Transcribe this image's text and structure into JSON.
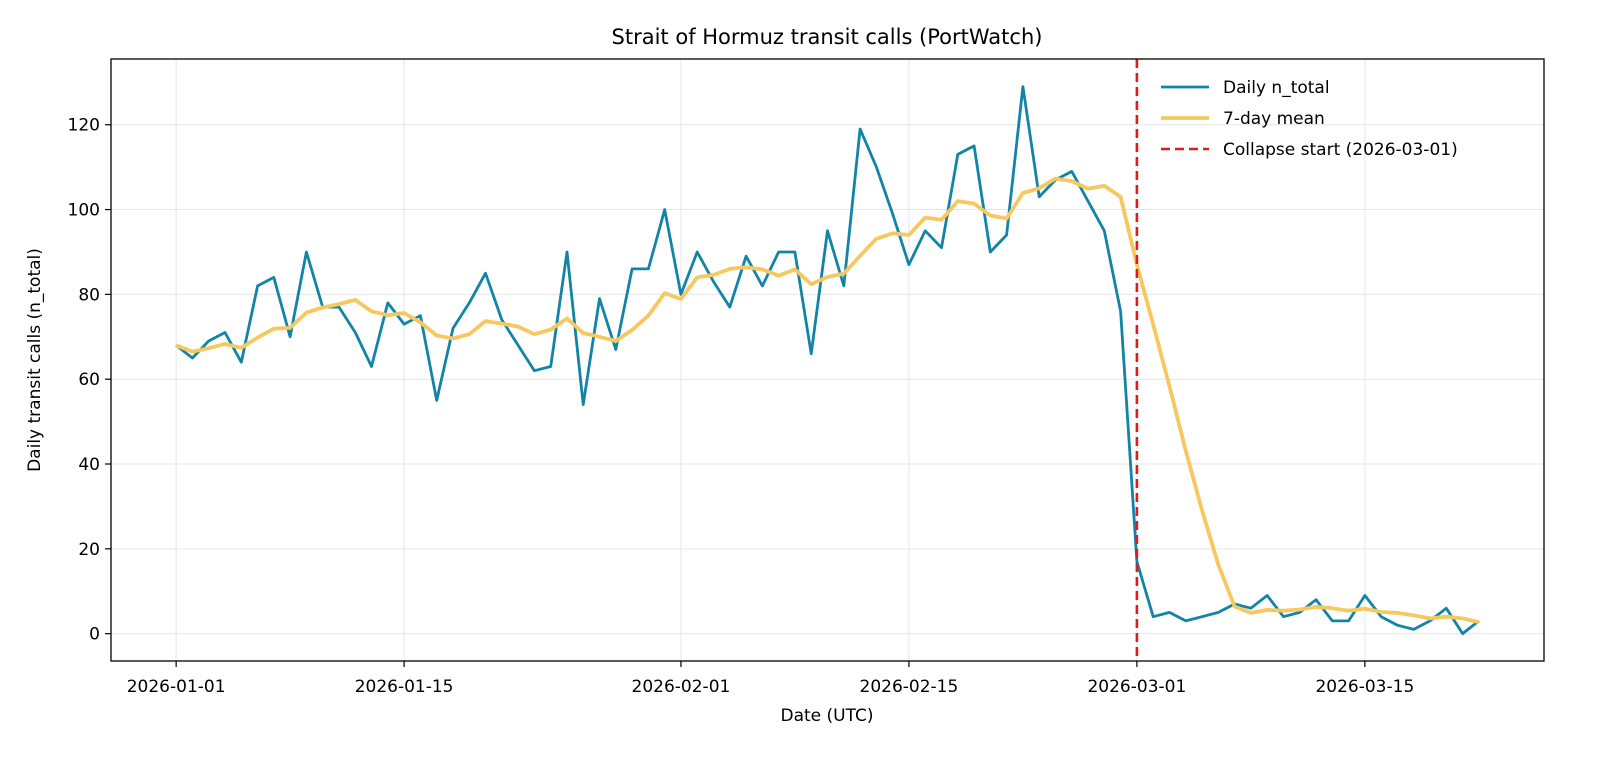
{
  "chart_data": {
    "type": "line",
    "title": "Strait of Hormuz transit calls (PortWatch)",
    "xlabel": "Date (UTC)",
    "ylabel": "Daily transit calls (n_total)",
    "xlim": [
      "2025-12-28",
      "2026-03-26"
    ],
    "ylim": [
      -6.45,
      135.5
    ],
    "x_ticks": [
      "2026-01-01",
      "2026-01-15",
      "2026-02-01",
      "2026-02-15",
      "2026-03-01",
      "2026-03-15"
    ],
    "y_ticks": [
      0,
      20,
      40,
      60,
      80,
      100,
      120
    ],
    "grid": true,
    "legend_position": "top-right",
    "x": [
      "2026-01-01",
      "2026-01-02",
      "2026-01-03",
      "2026-01-04",
      "2026-01-05",
      "2026-01-06",
      "2026-01-07",
      "2026-01-08",
      "2026-01-09",
      "2026-01-10",
      "2026-01-11",
      "2026-01-12",
      "2026-01-13",
      "2026-01-14",
      "2026-01-15",
      "2026-01-16",
      "2026-01-17",
      "2026-01-18",
      "2026-01-19",
      "2026-01-20",
      "2026-01-21",
      "2026-01-22",
      "2026-01-23",
      "2026-01-24",
      "2026-01-25",
      "2026-01-26",
      "2026-01-27",
      "2026-01-28",
      "2026-01-29",
      "2026-01-30",
      "2026-01-31",
      "2026-02-01",
      "2026-02-02",
      "2026-02-03",
      "2026-02-04",
      "2026-02-05",
      "2026-02-06",
      "2026-02-07",
      "2026-02-08",
      "2026-02-09",
      "2026-02-10",
      "2026-02-11",
      "2026-02-12",
      "2026-02-13",
      "2026-02-14",
      "2026-02-15",
      "2026-02-16",
      "2026-02-17",
      "2026-02-18",
      "2026-02-19",
      "2026-02-20",
      "2026-02-21",
      "2026-02-22",
      "2026-02-23",
      "2026-02-24",
      "2026-02-25",
      "2026-02-26",
      "2026-02-27",
      "2026-02-28",
      "2026-03-01",
      "2026-03-02",
      "2026-03-03",
      "2026-03-04",
      "2026-03-05",
      "2026-03-06",
      "2026-03-07",
      "2026-03-08",
      "2026-03-09",
      "2026-03-10",
      "2026-03-11",
      "2026-03-12",
      "2026-03-13",
      "2026-03-14",
      "2026-03-15",
      "2026-03-16",
      "2026-03-17",
      "2026-03-18",
      "2026-03-19",
      "2026-03-20",
      "2026-03-21",
      "2026-03-22"
    ],
    "series": [
      {
        "name": "Daily n_total",
        "color": "#1184a7",
        "style": "solid",
        "values": [
          68,
          65,
          69,
          71,
          64,
          82,
          84,
          70,
          90,
          77,
          77,
          71,
          63,
          78,
          73,
          75,
          55,
          72,
          78,
          85,
          74,
          68,
          62,
          63,
          90,
          54,
          79,
          67,
          86,
          86,
          100,
          80,
          90,
          83,
          77,
          89,
          82,
          90,
          90,
          66,
          95,
          82,
          119,
          110,
          99,
          87,
          95,
          91,
          113,
          115,
          90,
          94,
          129,
          103,
          107,
          109,
          102,
          95,
          76,
          17,
          4,
          5,
          3,
          4,
          5,
          7,
          6,
          9,
          4,
          5,
          8,
          3,
          3,
          9,
          4,
          2,
          1,
          3,
          6,
          0,
          3
        ]
      },
      {
        "name": "7-day mean",
        "color": "#f6c85f",
        "style": "solid",
        "values": [
          68,
          66.5,
          67.3,
          68.3,
          67.4,
          69.8,
          71.9,
          72.1,
          75.7,
          76.9,
          77.7,
          78.7,
          76.0,
          75.1,
          75.6,
          73.4,
          70.3,
          69.6,
          70.6,
          73.7,
          73.1,
          72.4,
          70.6,
          71.7,
          74.3,
          70.9,
          70.0,
          69.0,
          71.6,
          75.0,
          80.3,
          78.9,
          84.0,
          84.6,
          86.0,
          86.4,
          85.9,
          84.4,
          85.9,
          82.4,
          84.1,
          84.9,
          89.1,
          93.1,
          94.4,
          94.0,
          98.1,
          97.6,
          102.0,
          101.4,
          98.6,
          97.9,
          103.9,
          105.0,
          107.3,
          106.7,
          104.9,
          105.6,
          103.0,
          87.0,
          72.9,
          58.3,
          43.1,
          29.1,
          16.3,
          6.4,
          4.9,
          5.6,
          5.4,
          5.7,
          6.3,
          6.0,
          5.4,
          5.9,
          5.1,
          4.9,
          4.3,
          3.6,
          4.0,
          3.6,
          2.7
        ]
      }
    ],
    "annotations": [
      {
        "type": "vline",
        "x": "2026-03-01",
        "name": "Collapse start (2026-03-01)",
        "color": "#e31a1c",
        "style": "dashed"
      }
    ]
  }
}
